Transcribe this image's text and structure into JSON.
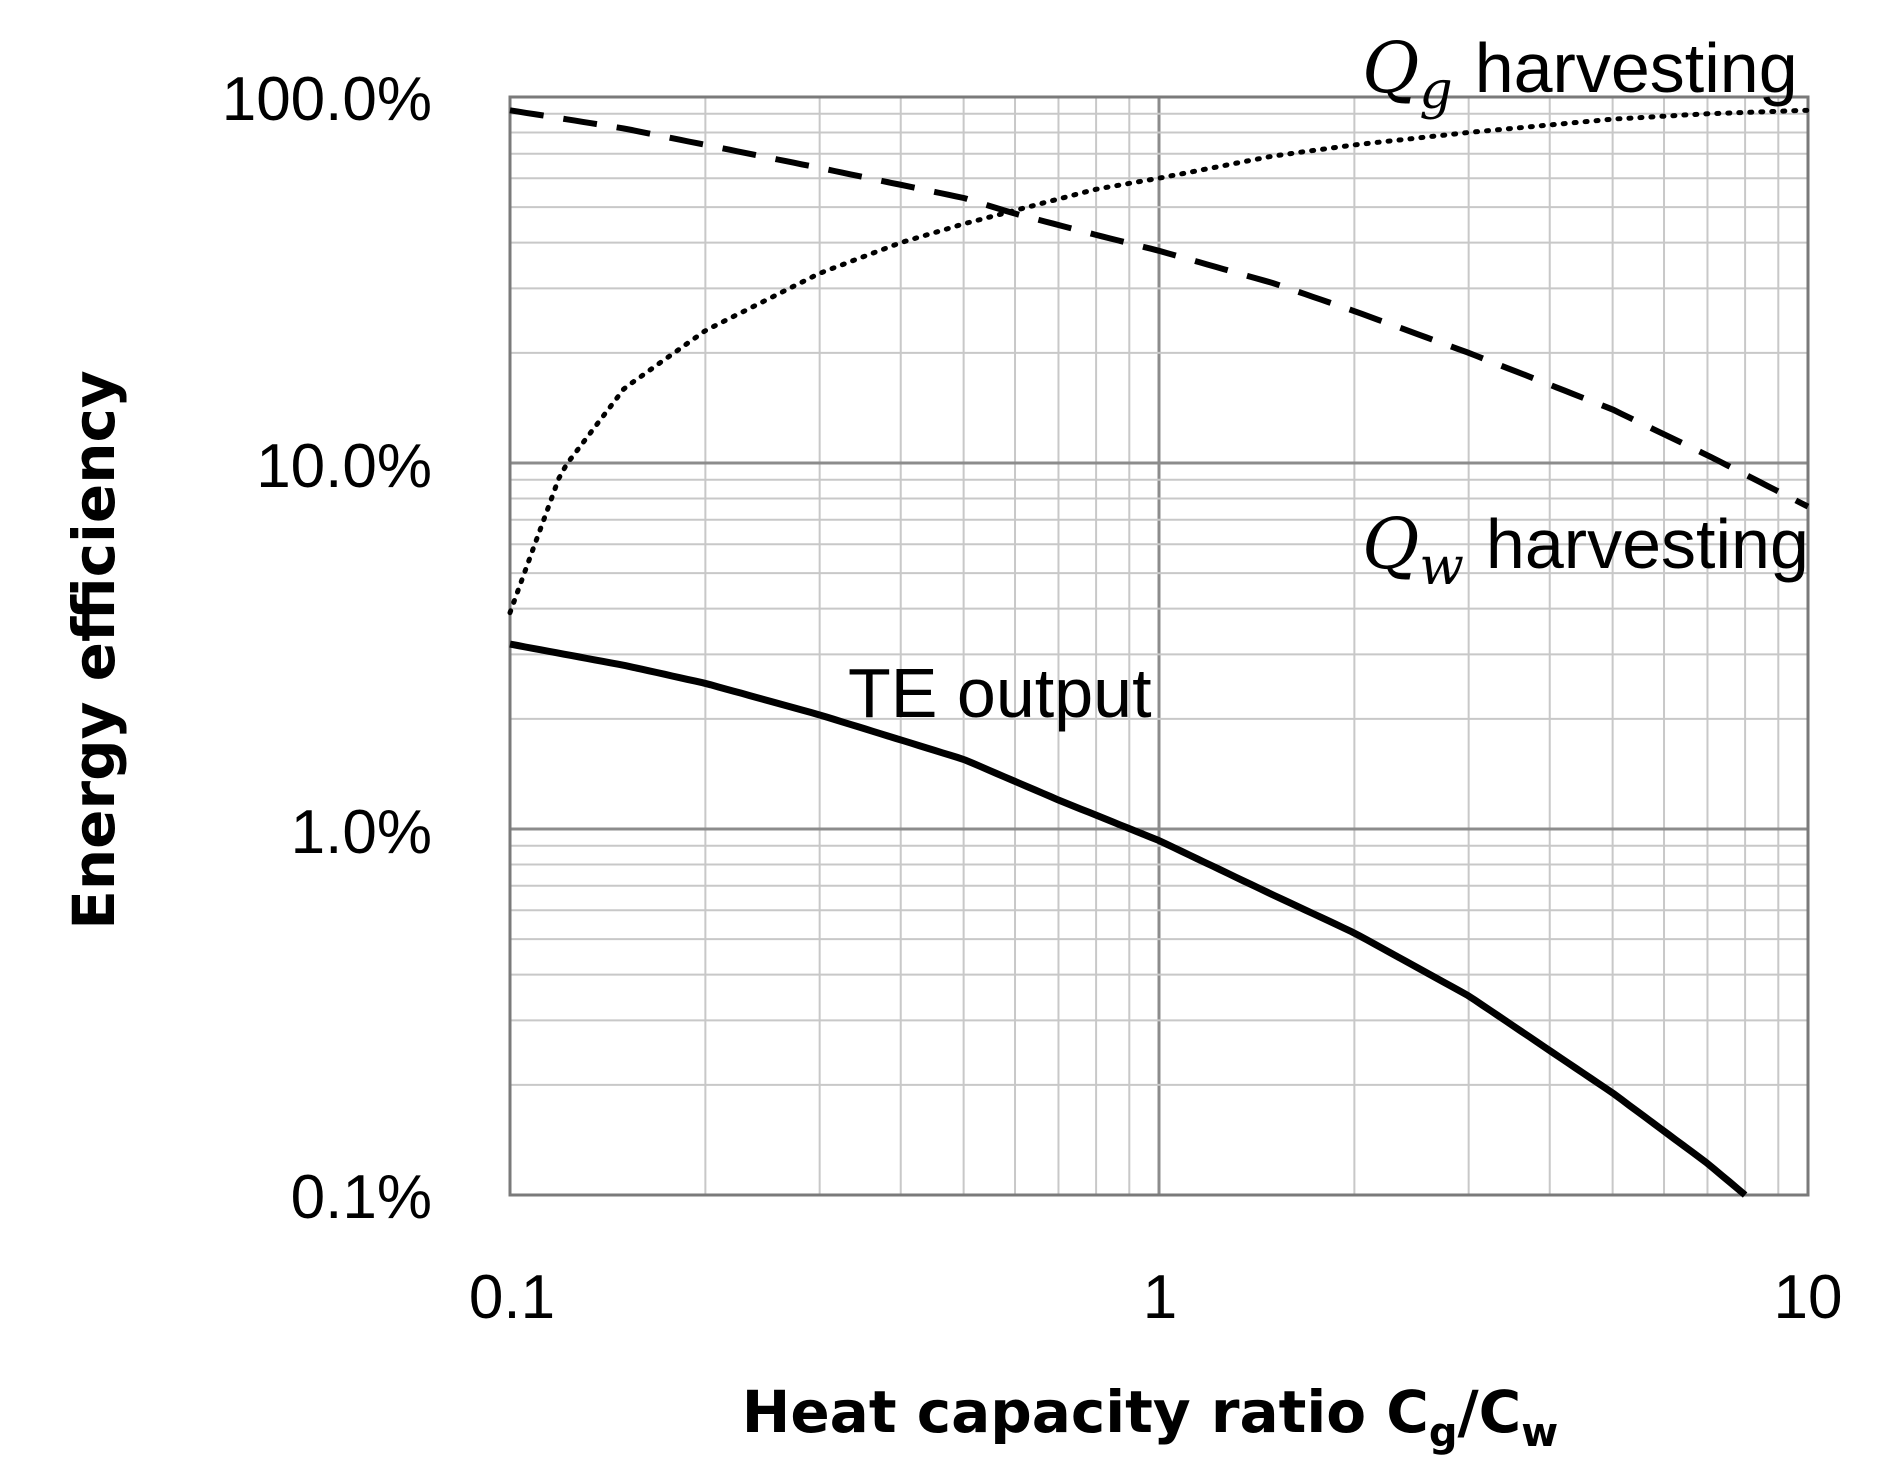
{
  "chart_data": {
    "type": "line",
    "xscale": "log",
    "yscale": "log",
    "xlim": [
      0.1,
      10
    ],
    "ylim": [
      0.1,
      100
    ],
    "grid": true,
    "title": "",
    "xlabel": {
      "main": "Heat capacity ratio C",
      "sub1": "g",
      "mid": "/C",
      "sub2": "w"
    },
    "ylabel": "Energy efficiency",
    "x_ticks": [
      {
        "value": 0.1,
        "label": "0.1"
      },
      {
        "value": 1,
        "label": "1"
      },
      {
        "value": 10,
        "label": "10"
      }
    ],
    "y_ticks": [
      {
        "value": 0.1,
        "label": "0.1%"
      },
      {
        "value": 1,
        "label": "1.0%"
      },
      {
        "value": 10,
        "label": "10.0%"
      },
      {
        "value": 100,
        "label": "100.0%"
      }
    ],
    "series": [
      {
        "name": "Qg harvesting",
        "style": "dotted",
        "x": [
          0.1,
          0.12,
          0.15,
          0.2,
          0.3,
          0.4,
          0.5,
          0.6,
          0.8,
          1,
          1.5,
          2,
          3,
          5,
          7,
          10
        ],
        "y": [
          3.9,
          9.5,
          16,
          23,
          33,
          40,
          45,
          49,
          56,
          60,
          69,
          74,
          80,
          87,
          90,
          92
        ]
      },
      {
        "name": "Qw harvesting",
        "style": "dashed",
        "x": [
          0.1,
          0.15,
          0.2,
          0.3,
          0.5,
          0.6,
          0.8,
          1,
          1.5,
          2,
          3,
          5,
          7,
          10
        ],
        "y": [
          92,
          82,
          74,
          64,
          53,
          48,
          42,
          38,
          31,
          26,
          20,
          14,
          10.5,
          7.6
        ]
      },
      {
        "name": "TE output",
        "style": "solid",
        "x": [
          0.1,
          0.15,
          0.2,
          0.3,
          0.5,
          0.7,
          1,
          1.5,
          2,
          3,
          5,
          7,
          8
        ],
        "y": [
          3.2,
          2.8,
          2.5,
          2.05,
          1.55,
          1.2,
          0.93,
          0.66,
          0.52,
          0.35,
          0.19,
          0.122,
          0.1
        ]
      }
    ],
    "annotations": [
      {
        "name": "qg",
        "symbol": "Q",
        "sub": "g",
        "text": "harvesting"
      },
      {
        "name": "qw",
        "symbol": "Q",
        "sub": "w",
        "text": "harvesting"
      },
      {
        "name": "te",
        "text": "TE output"
      }
    ],
    "colors": {
      "line": "#000000",
      "grid_minor": "#c8c8c8",
      "grid_major": "#8c8c8c",
      "frame": "#7a7a7a"
    }
  }
}
